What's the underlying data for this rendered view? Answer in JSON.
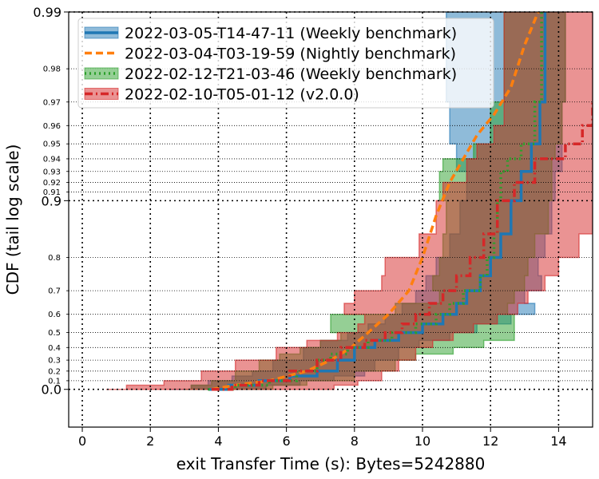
{
  "chart_data": {
    "type": "line",
    "title": "",
    "xlabel": "exit Transfer Time (s): Bytes=5242880",
    "ylabel": "CDF (tail log scale)",
    "xlim": [
      -0.4,
      15
    ],
    "x_ticks": [
      0,
      2,
      4,
      6,
      8,
      10,
      12,
      14
    ],
    "x_tick_labels": [
      "0",
      "2",
      "4",
      "6",
      "8",
      "10",
      "12",
      "14"
    ],
    "y_major_ticks": [
      0.0,
      0.9,
      0.99
    ],
    "y_major_labels": [
      "0.0",
      "0.9",
      "0.99"
    ],
    "y_minor_ticks": [
      0.1,
      0.2,
      0.3,
      0.4,
      0.5,
      0.6,
      0.7,
      0.8,
      0.91,
      0.92,
      0.93,
      0.94,
      0.95,
      0.96,
      0.97,
      0.98
    ],
    "y_minor_labels": [
      "0.1",
      "0.2",
      "0.3",
      "0.4",
      "0.5",
      "0.6",
      "0.7",
      "0.8",
      "0.91",
      "0.92",
      "0.93",
      "0.94",
      "0.95",
      "0.96",
      "0.97",
      "0.98"
    ],
    "y_scale": "tail-log: -log10(1-p)",
    "grid": true,
    "legend_position": "top-right",
    "series": [
      {
        "name": "2022-03-05-T14-47-11 (Weekly benchmark)",
        "color": "#1f77b4",
        "style": "solid",
        "points": [
          [
            3.7,
            0.0
          ],
          [
            4.3,
            0.05
          ],
          [
            5.2,
            0.1
          ],
          [
            6.1,
            0.15
          ],
          [
            6.9,
            0.2
          ],
          [
            7.5,
            0.3
          ],
          [
            8.0,
            0.4
          ],
          [
            8.6,
            0.45
          ],
          [
            9.3,
            0.5
          ],
          [
            10.0,
            0.55
          ],
          [
            10.6,
            0.6
          ],
          [
            11.0,
            0.65
          ],
          [
            11.3,
            0.7
          ],
          [
            11.7,
            0.75
          ],
          [
            12.0,
            0.8
          ],
          [
            12.3,
            0.85
          ],
          [
            12.6,
            0.9
          ],
          [
            12.9,
            0.93
          ],
          [
            13.2,
            0.95
          ],
          [
            13.45,
            0.97
          ],
          [
            13.6,
            0.99
          ]
        ],
        "band_lower": [
          [
            2.6,
            0.0
          ],
          [
            3.2,
            0.05
          ],
          [
            3.7,
            0.1
          ],
          [
            4.4,
            0.15
          ],
          [
            5.0,
            0.2
          ],
          [
            5.6,
            0.3
          ],
          [
            6.5,
            0.4
          ],
          [
            7.0,
            0.45
          ],
          [
            7.8,
            0.5
          ],
          [
            8.4,
            0.55
          ],
          [
            8.9,
            0.6
          ],
          [
            9.4,
            0.65
          ],
          [
            9.8,
            0.7
          ],
          [
            10.1,
            0.75
          ],
          [
            10.4,
            0.8
          ],
          [
            10.8,
            0.85
          ],
          [
            11.1,
            0.9
          ],
          [
            11.3,
            0.93
          ],
          [
            11.0,
            0.95
          ],
          [
            10.8,
            0.97
          ],
          [
            10.7,
            0.99
          ]
        ],
        "band_upper": [
          [
            4.6,
            0.0
          ],
          [
            5.4,
            0.05
          ],
          [
            6.4,
            0.1
          ],
          [
            7.4,
            0.15
          ],
          [
            8.3,
            0.2
          ],
          [
            8.6,
            0.3
          ],
          [
            9.3,
            0.4
          ],
          [
            9.9,
            0.45
          ],
          [
            10.8,
            0.5
          ],
          [
            11.6,
            0.55
          ],
          [
            12.6,
            0.6
          ],
          [
            13.3,
            0.65
          ],
          [
            13.0,
            0.7
          ],
          [
            13.5,
            0.75
          ],
          [
            13.4,
            0.8
          ],
          [
            13.6,
            0.85
          ],
          [
            13.8,
            0.9
          ],
          [
            13.9,
            0.93
          ],
          [
            14.1,
            0.95
          ],
          [
            14.1,
            0.97
          ],
          [
            14.2,
            0.99
          ]
        ]
      },
      {
        "name": "2022-03-04-T03-19-59 (Nightly benchmark)",
        "color": "#ff7f0e",
        "style": "dashed",
        "points": [
          [
            3.8,
            0.0
          ],
          [
            4.5,
            0.05
          ],
          [
            5.5,
            0.1
          ],
          [
            6.6,
            0.2
          ],
          [
            7.3,
            0.3
          ],
          [
            7.9,
            0.4
          ],
          [
            8.4,
            0.5
          ],
          [
            9.0,
            0.6
          ],
          [
            9.6,
            0.7
          ],
          [
            10.0,
            0.8
          ],
          [
            10.4,
            0.88
          ],
          [
            10.8,
            0.92
          ],
          [
            11.2,
            0.94
          ],
          [
            11.6,
            0.955
          ],
          [
            12.1,
            0.965
          ],
          [
            12.6,
            0.975
          ],
          [
            13.0,
            0.985
          ],
          [
            13.4,
            0.99
          ]
        ]
      },
      {
        "name": "2022-02-12-T21-03-46 (Weekly benchmark)",
        "color": "#2ca02c",
        "style": "dotted",
        "points": [
          [
            3.7,
            0.0
          ],
          [
            4.5,
            0.05
          ],
          [
            5.5,
            0.1
          ],
          [
            6.3,
            0.2
          ],
          [
            6.9,
            0.3
          ],
          [
            7.3,
            0.35
          ],
          [
            7.8,
            0.4
          ],
          [
            8.4,
            0.45
          ],
          [
            9.1,
            0.5
          ],
          [
            9.8,
            0.55
          ],
          [
            10.4,
            0.6
          ],
          [
            10.8,
            0.65
          ],
          [
            11.2,
            0.7
          ],
          [
            11.7,
            0.75
          ],
          [
            11.9,
            0.8
          ],
          [
            12.1,
            0.85
          ],
          [
            12.2,
            0.9
          ],
          [
            12.3,
            0.93
          ],
          [
            12.5,
            0.94
          ],
          [
            12.9,
            0.95
          ],
          [
            13.3,
            0.97
          ],
          [
            13.5,
            0.99
          ]
        ],
        "band_lower": [
          [
            3.0,
            0.0
          ],
          [
            3.2,
            0.05
          ],
          [
            3.8,
            0.1
          ],
          [
            4.5,
            0.2
          ],
          [
            5.2,
            0.3
          ],
          [
            5.8,
            0.35
          ],
          [
            6.4,
            0.4
          ],
          [
            7.0,
            0.45
          ],
          [
            7.6,
            0.5
          ],
          [
            7.3,
            0.55
          ],
          [
            7.3,
            0.6
          ],
          [
            9.2,
            0.65
          ],
          [
            10.5,
            0.7
          ],
          [
            10.3,
            0.75
          ],
          [
            10.5,
            0.8
          ],
          [
            10.6,
            0.85
          ],
          [
            10.7,
            0.9
          ],
          [
            10.5,
            0.93
          ],
          [
            10.6,
            0.94
          ],
          [
            11.5,
            0.95
          ],
          [
            12.0,
            0.97
          ],
          [
            12.4,
            0.99
          ]
        ],
        "band_upper": [
          [
            4.5,
            0.0
          ],
          [
            5.6,
            0.05
          ],
          [
            6.6,
            0.1
          ],
          [
            8.0,
            0.2
          ],
          [
            9.2,
            0.3
          ],
          [
            9.8,
            0.35
          ],
          [
            10.9,
            0.4
          ],
          [
            11.8,
            0.45
          ],
          [
            12.7,
            0.5
          ],
          [
            12.7,
            0.55
          ],
          [
            12.7,
            0.6
          ],
          [
            12.5,
            0.65
          ],
          [
            12.7,
            0.7
          ],
          [
            13.0,
            0.75
          ],
          [
            13.1,
            0.8
          ],
          [
            13.3,
            0.85
          ],
          [
            13.7,
            0.9
          ],
          [
            13.8,
            0.93
          ],
          [
            13.8,
            0.94
          ],
          [
            13.9,
            0.95
          ],
          [
            14.1,
            0.97
          ],
          [
            14.2,
            0.99
          ]
        ]
      },
      {
        "name": "2022-02-10-T05-01-12 (v2.0.0)",
        "color": "#d62728",
        "style": "dashdot",
        "points": [
          [
            3.8,
            0.0
          ],
          [
            4.4,
            0.05
          ],
          [
            5.2,
            0.1
          ],
          [
            6.1,
            0.2
          ],
          [
            6.9,
            0.3
          ],
          [
            7.6,
            0.4
          ],
          [
            8.3,
            0.45
          ],
          [
            8.9,
            0.5
          ],
          [
            9.4,
            0.55
          ],
          [
            9.8,
            0.6
          ],
          [
            10.2,
            0.65
          ],
          [
            10.6,
            0.7
          ],
          [
            11.0,
            0.75
          ],
          [
            11.4,
            0.8
          ],
          [
            11.8,
            0.85
          ],
          [
            12.2,
            0.9
          ],
          [
            12.7,
            0.92
          ],
          [
            13.3,
            0.94
          ],
          [
            14.2,
            0.95
          ],
          [
            14.7,
            0.96
          ],
          [
            15.0,
            0.97
          ]
        ],
        "band_lower": [
          [
            0.7,
            0.0
          ],
          [
            1.3,
            0.05
          ],
          [
            2.4,
            0.1
          ],
          [
            3.5,
            0.2
          ],
          [
            4.5,
            0.3
          ],
          [
            5.7,
            0.4
          ],
          [
            6.6,
            0.45
          ],
          [
            7.5,
            0.5
          ],
          [
            8.1,
            0.55
          ],
          [
            8.3,
            0.6
          ],
          [
            7.7,
            0.65
          ],
          [
            8.0,
            0.7
          ],
          [
            8.8,
            0.75
          ],
          [
            8.9,
            0.8
          ],
          [
            9.9,
            0.85
          ],
          [
            10.4,
            0.9
          ],
          [
            10.6,
            0.92
          ],
          [
            11.3,
            0.94
          ],
          [
            11.6,
            0.95
          ],
          [
            12.1,
            0.96
          ],
          [
            12.4,
            0.99
          ]
        ],
        "band_upper": [
          [
            6.6,
            0.0
          ],
          [
            7.4,
            0.05
          ],
          [
            8.1,
            0.1
          ],
          [
            8.8,
            0.2
          ],
          [
            9.3,
            0.3
          ],
          [
            9.8,
            0.4
          ],
          [
            10.3,
            0.45
          ],
          [
            10.9,
            0.5
          ],
          [
            11.5,
            0.55
          ],
          [
            12.2,
            0.6
          ],
          [
            12.8,
            0.65
          ],
          [
            13.1,
            0.7
          ],
          [
            13.6,
            0.75
          ],
          [
            14.0,
            0.8
          ],
          [
            14.6,
            0.85
          ],
          [
            15.0,
            0.9
          ],
          [
            15.0,
            0.92
          ],
          [
            15.0,
            0.94
          ],
          [
            15.0,
            0.95
          ],
          [
            15.0,
            0.96
          ],
          [
            15.0,
            0.99
          ]
        ]
      }
    ]
  }
}
